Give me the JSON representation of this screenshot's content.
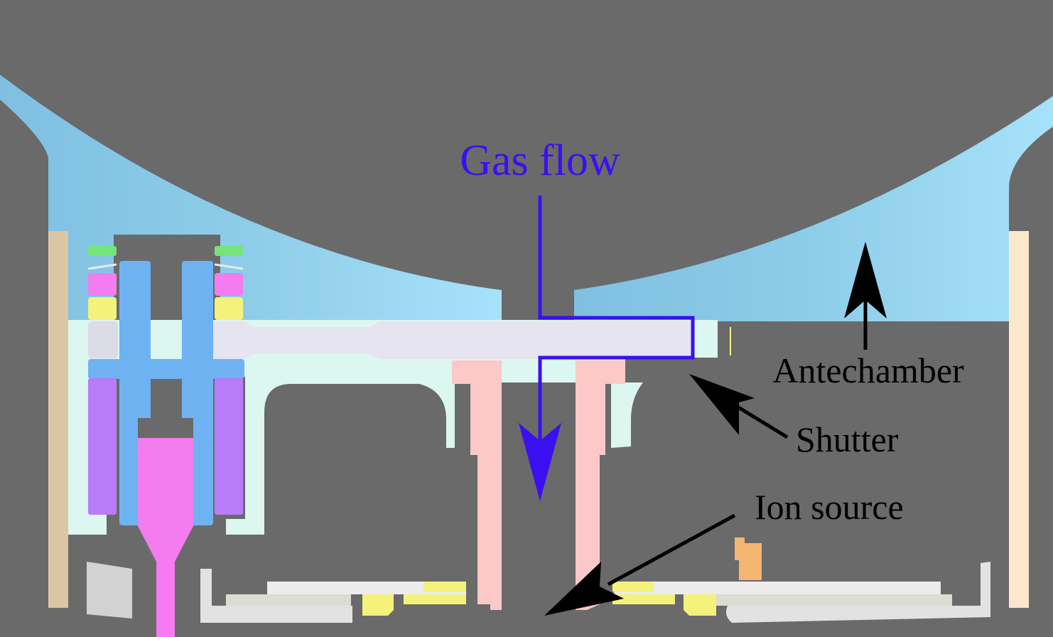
{
  "diagram": {
    "labels": {
      "gas_flow": "Gas flow",
      "antechamber": "Antechamber",
      "shutter": "Shutter",
      "ion_source": "Ion source"
    },
    "colors": {
      "background": "#6a6a6a",
      "gas_flow": "#3a10f0",
      "annotation": "#000000",
      "antechamber_wall": "#8ecde8",
      "shutter_plate": "#e6e4f0",
      "housing": "#dcf6f0",
      "pink_tube": "#fcc8c8",
      "magenta_feed": "#f47cf0",
      "blue_post": "#6fb2f2",
      "purple_coil": "#b87cf8",
      "yellow_part": "#f4f27a",
      "green_part": "#76e478",
      "side_rod_left": "#dbc6a4",
      "side_rod_right": "#fbe8cc",
      "base_plate": "#e2e2e2",
      "orange_part": "#f4b672"
    }
  }
}
